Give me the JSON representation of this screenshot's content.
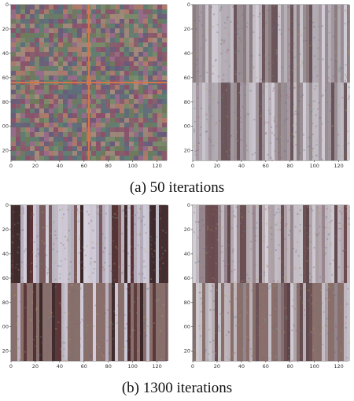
{
  "figure": {
    "rows": [
      {
        "caption": "(a) 50 iterations",
        "panels": [
          {
            "id": "a-left",
            "pattern": "noise-grid"
          },
          {
            "id": "a-right",
            "pattern": "stripes"
          }
        ]
      },
      {
        "caption": "(b) 1300 iterations",
        "panels": [
          {
            "id": "b-left",
            "pattern": "stripes-dark"
          },
          {
            "id": "b-right",
            "pattern": "stripes-soft"
          }
        ]
      }
    ],
    "axis": {
      "xticks": [
        "0",
        "20",
        "40",
        "60",
        "80",
        "100",
        "120"
      ],
      "yticks": [
        "0",
        "20",
        "40",
        "60",
        "80",
        "100",
        "120"
      ],
      "range": [
        0,
        128
      ]
    }
  }
}
